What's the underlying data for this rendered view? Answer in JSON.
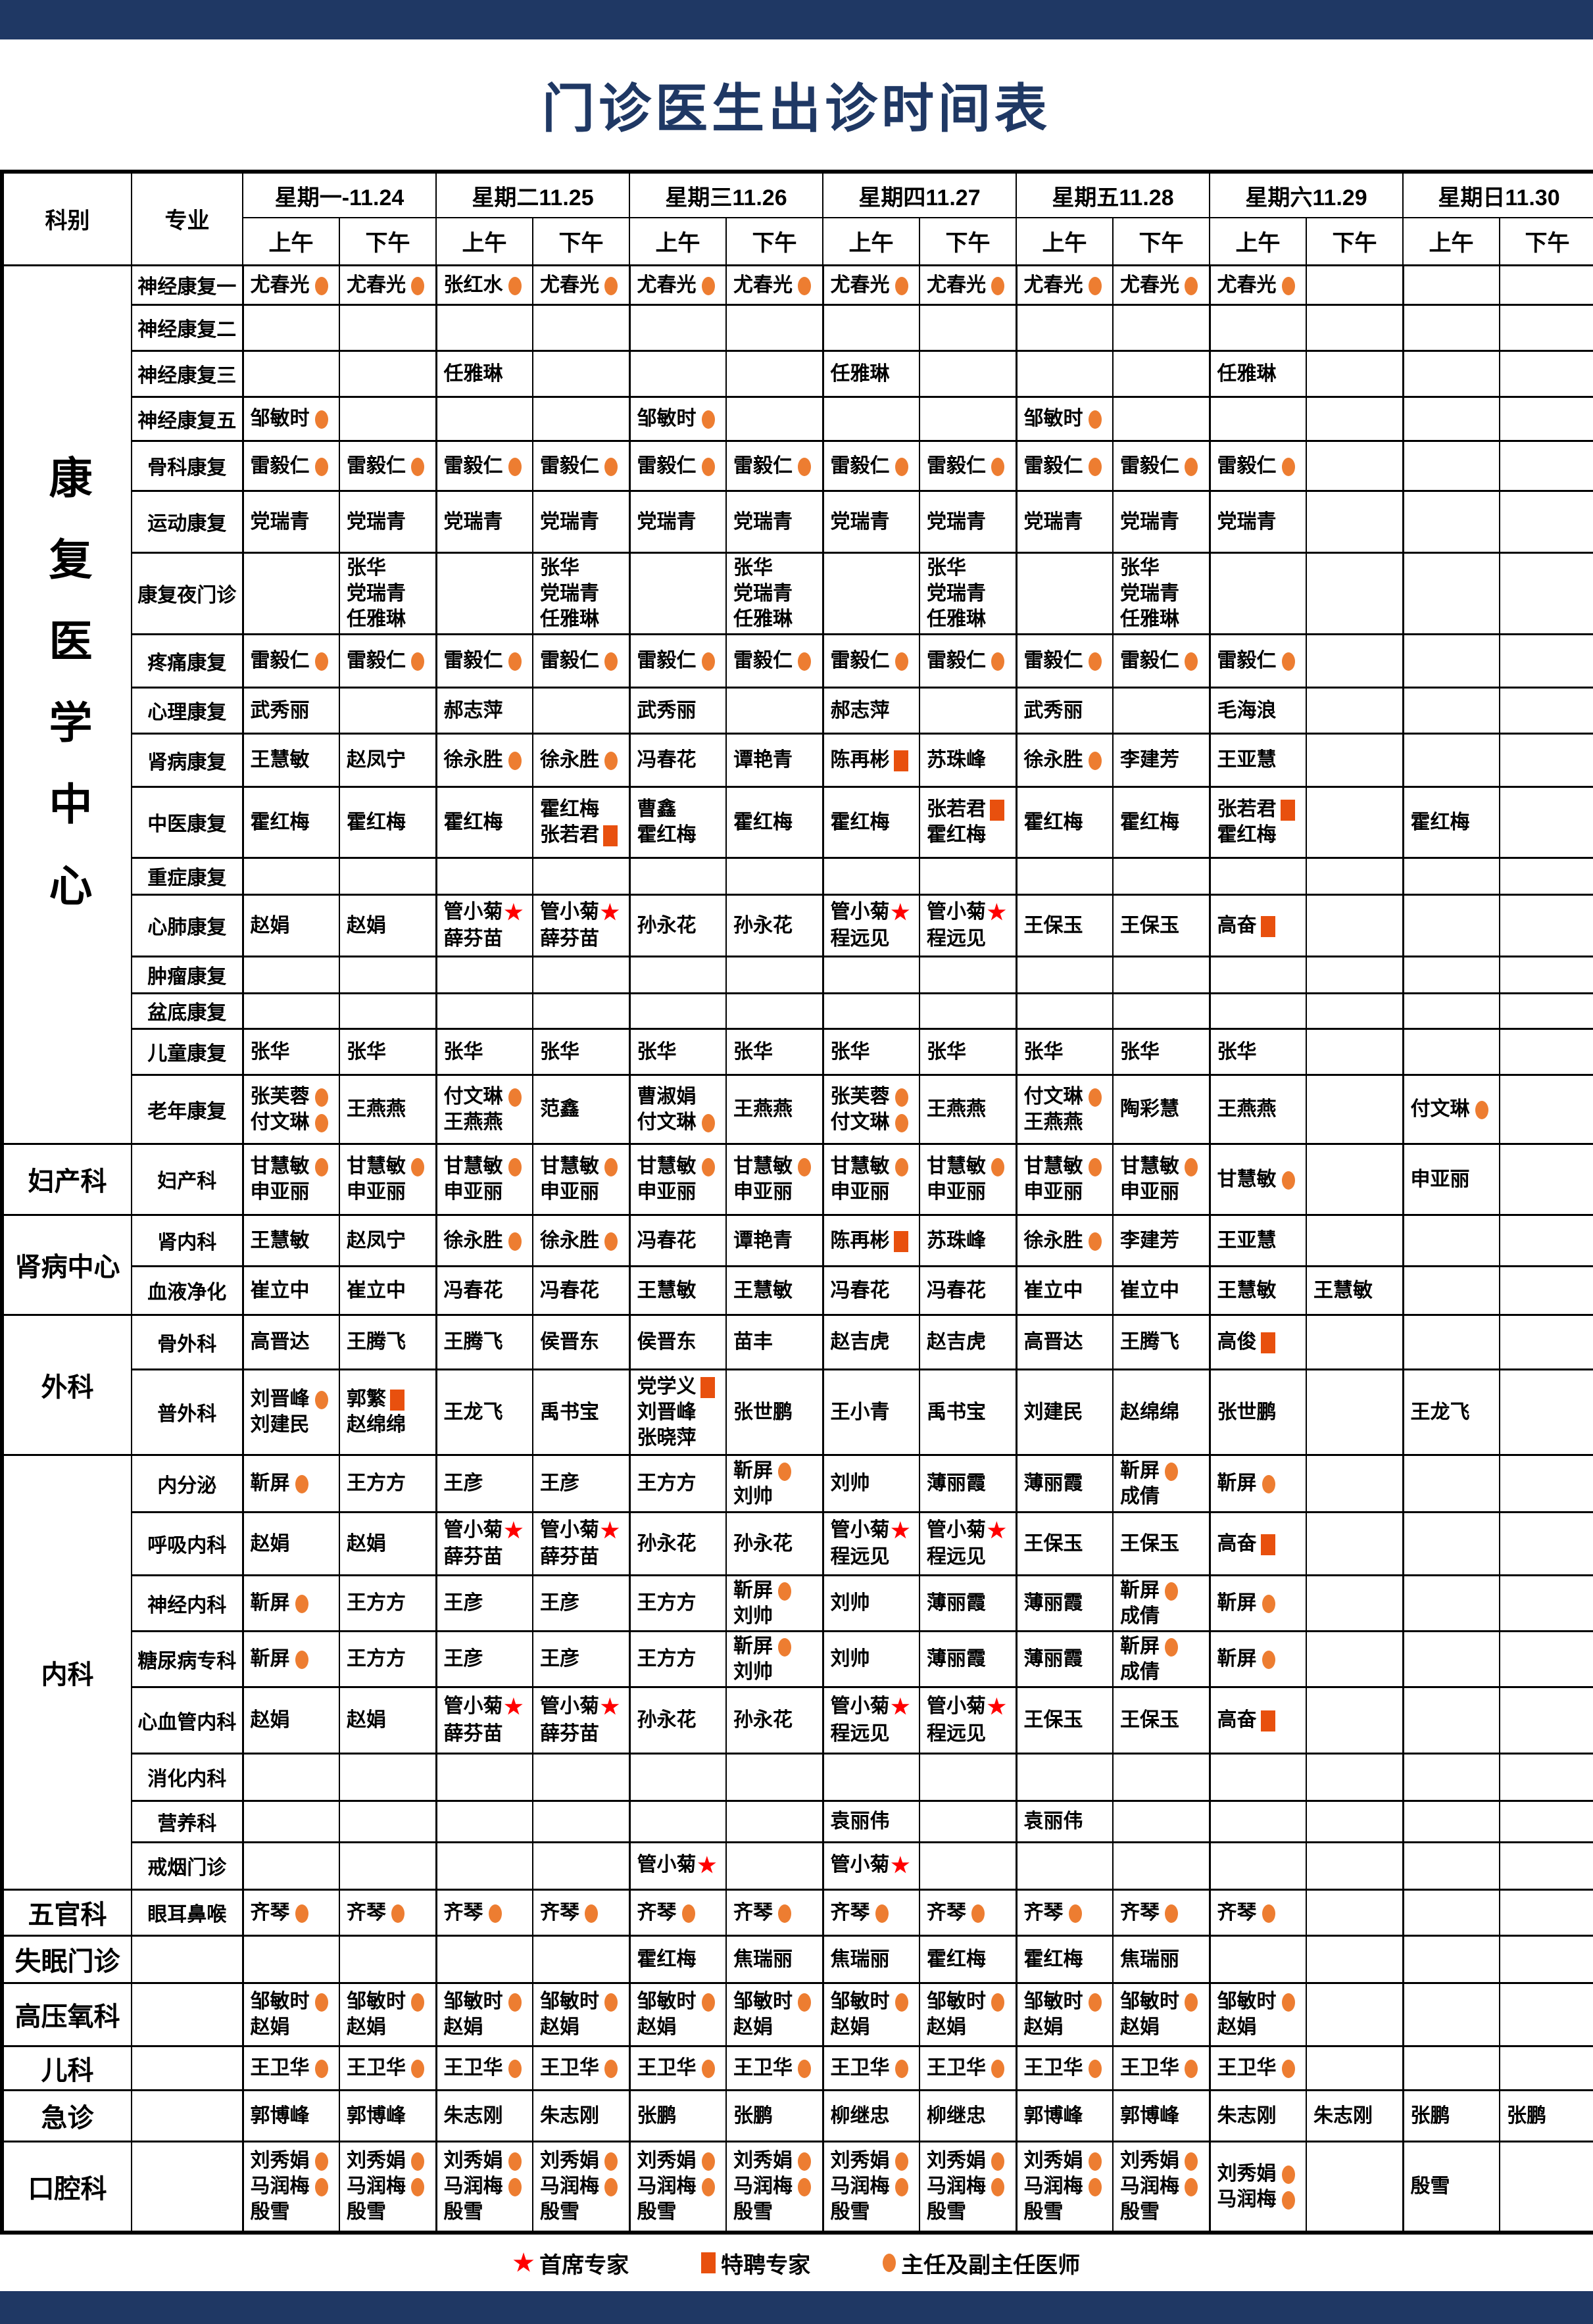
{
  "title": "门诊医生出诊时间表",
  "colors": {
    "navy": "#1F3864",
    "dot": "#ED7D31",
    "square": "#E8500E",
    "star": "#FF0000"
  },
  "header": {
    "col1": "科别",
    "col2": "专业",
    "days": [
      "星期一-11.24",
      "星期二11.25",
      "星期三11.26",
      "星期四11.27",
      "星期五11.28",
      "星期六11.29",
      "星期日11.30"
    ],
    "am": "上午",
    "pm": "下午"
  },
  "legend": [
    {
      "symbol": "star",
      "label": "首席专家"
    },
    {
      "symbol": "square",
      "label": "特聘专家"
    },
    {
      "symbol": "dot",
      "label": "主任及副主任医师"
    }
  ],
  "departments": [
    {
      "label": "康复医学中心",
      "vertical": true,
      "rows": [
        {
          "label": "神经康复一",
          "h": 60,
          "cells": [
            "尤春光●",
            "尤春光●",
            "张红水●",
            "尤春光●",
            "尤春光●",
            "尤春光●",
            "尤春光●",
            "尤春光●",
            "尤春光●",
            "尤春光●",
            "尤春光●",
            "",
            "",
            ""
          ]
        },
        {
          "label": "神经康复二",
          "h": 70,
          "cells": [
            "",
            "",
            "",
            "",
            "",
            "",
            "",
            "",
            "",
            "",
            "",
            "",
            "",
            ""
          ]
        },
        {
          "label": "神经康复三",
          "h": 70,
          "cells": [
            "",
            "",
            "任雅琳",
            "",
            "",
            "",
            "任雅琳",
            "",
            "",
            "",
            "任雅琳",
            "",
            "",
            ""
          ]
        },
        {
          "label": "神经康复五",
          "h": 67,
          "cells": [
            "邹敏时●",
            "",
            "",
            "",
            "邹敏时●",
            "",
            "",
            "",
            "邹敏时●",
            "",
            "",
            "",
            "",
            ""
          ]
        },
        {
          "label": "骨科康复",
          "h": 76,
          "cells": [
            "雷毅仁●",
            "雷毅仁●",
            "雷毅仁●",
            "雷毅仁●",
            "雷毅仁●",
            "雷毅仁●",
            "雷毅仁●",
            "雷毅仁●",
            "雷毅仁●",
            "雷毅仁●",
            "雷毅仁●",
            "",
            "",
            ""
          ]
        },
        {
          "label": "运动康复",
          "h": 94,
          "cells": [
            "党瑞青",
            "党瑞青",
            "党瑞青",
            "党瑞青",
            "党瑞青",
            "党瑞青",
            "党瑞青",
            "党瑞青",
            "党瑞青",
            "党瑞青",
            "党瑞青",
            "",
            "",
            ""
          ]
        },
        {
          "label": "康复夜门诊",
          "h": 123,
          "cells": [
            "",
            "张华\n党瑞青\n任雅琳",
            "",
            "张华\n党瑞青\n任雅琳",
            "",
            "张华\n党瑞青\n任雅琳",
            "",
            "张华\n党瑞青\n任雅琳",
            "",
            "张华\n党瑞青\n任雅琳",
            "",
            "",
            "",
            ""
          ]
        },
        {
          "label": "疼痛康复",
          "h": 81,
          "cells": [
            "雷毅仁●",
            "雷毅仁●",
            "雷毅仁●",
            "雷毅仁●",
            "雷毅仁●",
            "雷毅仁●",
            "雷毅仁●",
            "雷毅仁●",
            "雷毅仁●",
            "雷毅仁●",
            "雷毅仁●",
            "",
            "",
            ""
          ]
        },
        {
          "label": "心理康复",
          "h": 70,
          "cells": [
            "武秀丽",
            "",
            "郝志萍",
            "",
            "武秀丽",
            "",
            "郝志萍",
            "",
            "武秀丽",
            "",
            "毛海浪",
            "",
            "",
            ""
          ]
        },
        {
          "label": "肾病康复",
          "h": 81,
          "cells": [
            "王慧敏",
            "赵凤宁",
            "徐永胜●",
            "徐永胜●",
            "冯春花",
            "谭艳青",
            "陈再彬■",
            "苏珠峰",
            "徐永胜●",
            "李建芳",
            "王亚慧",
            "",
            "",
            ""
          ]
        },
        {
          "label": "中医康复",
          "h": 108,
          "cells": [
            "霍红梅",
            "霍红梅",
            "霍红梅",
            "霍红梅\n张若君■",
            "曹鑫\n霍红梅",
            "霍红梅",
            "霍红梅",
            "张若君■\n霍红梅",
            "霍红梅",
            "霍红梅",
            "张若君■\n霍红梅",
            "",
            "霍红梅",
            ""
          ]
        },
        {
          "label": "重症康复",
          "h": 56,
          "cells": [
            "",
            "",
            "",
            "",
            "",
            "",
            "",
            "",
            "",
            "",
            "",
            "",
            "",
            ""
          ]
        },
        {
          "label": "心肺康复",
          "h": 94,
          "cells": [
            "赵娟",
            "赵娟",
            "管小菊★\n薛芬苗",
            "管小菊★\n薛芬苗",
            "孙永花",
            "孙永花",
            "管小菊★\n程远见",
            "管小菊★\n程远见",
            "王保玉",
            "王保玉",
            "高奋■",
            "",
            "",
            ""
          ]
        },
        {
          "label": "肿瘤康复",
          "h": 56,
          "cells": [
            "",
            "",
            "",
            "",
            "",
            "",
            "",
            "",
            "",
            "",
            "",
            "",
            "",
            ""
          ]
        },
        {
          "label": "盆底康复",
          "h": 54,
          "cells": [
            "",
            "",
            "",
            "",
            "",
            "",
            "",
            "",
            "",
            "",
            "",
            "",
            "",
            ""
          ]
        },
        {
          "label": "儿童康复",
          "h": 70,
          "cells": [
            "张华",
            "张华",
            "张华",
            "张华",
            "张华",
            "张华",
            "张华",
            "张华",
            "张华",
            "张华",
            "张华",
            "",
            "",
            ""
          ]
        },
        {
          "label": "老年康复",
          "h": 105,
          "cells": [
            "张芙蓉●\n付文琳●",
            "王燕燕",
            "付文琳●\n王燕燕",
            "范鑫",
            "曹淑娟\n付文琳●",
            "王燕燕",
            "张芙蓉●\n付文琳●",
            "王燕燕",
            "付文琳●\n王燕燕",
            "陶彩慧",
            "王燕燕",
            "",
            "付文琳●",
            ""
          ]
        }
      ]
    },
    {
      "label": "妇产科",
      "rows": [
        {
          "label": "妇产科",
          "h": 108,
          "cells": [
            "甘慧敏●\n申亚丽",
            "甘慧敏●\n申亚丽",
            "甘慧敏●\n申亚丽",
            "甘慧敏●\n申亚丽",
            "甘慧敏●\n申亚丽",
            "甘慧敏●\n申亚丽",
            "甘慧敏●\n申亚丽",
            "甘慧敏●\n申亚丽",
            "甘慧敏●\n申亚丽",
            "甘慧敏●\n申亚丽",
            "甘慧敏●",
            "",
            "申亚丽",
            ""
          ]
        }
      ]
    },
    {
      "label": "肾病中心",
      "rows": [
        {
          "label": "肾内科",
          "h": 78,
          "cells": [
            "王慧敏",
            "赵凤宁",
            "徐永胜●",
            "徐永胜●",
            "冯春花",
            "谭艳青",
            "陈再彬■",
            "苏珠峰",
            "徐永胜●",
            "李建芳",
            "王亚慧",
            "",
            "",
            ""
          ]
        },
        {
          "label": "血液净化",
          "h": 74,
          "cells": [
            "崔立中",
            "崔立中",
            "冯春花",
            "冯春花",
            "王慧敏",
            "王慧敏",
            "冯春花",
            "冯春花",
            "崔立中",
            "崔立中",
            "王慧敏",
            "王慧敏",
            "",
            ""
          ]
        }
      ]
    },
    {
      "label": "外科",
      "rows": [
        {
          "label": "骨外科",
          "h": 83,
          "cells": [
            "高晋达",
            "王腾飞",
            "王腾飞",
            "侯晋东",
            "侯晋东",
            "苗丰",
            "赵吉虎",
            "赵吉虎",
            "高晋达",
            "王腾飞",
            "高俊■",
            "",
            "",
            ""
          ]
        },
        {
          "label": "普外科",
          "h": 130,
          "cells": [
            "刘晋峰●\n刘建民",
            "郭繁■\n赵绵绵",
            "王龙飞",
            "禹书宝",
            "党学义■\n刘晋峰\n张晓萍",
            "张世鹏",
            "王小青",
            "禹书宝",
            "刘建民",
            "赵绵绵",
            "张世鹏",
            "",
            "王龙飞",
            ""
          ]
        }
      ]
    },
    {
      "label": "内科",
      "rows": [
        {
          "label": "内分泌",
          "h": 87,
          "cells": [
            "靳屏●",
            "王方方",
            "王彦",
            "王彦",
            "王方方",
            "靳屏●\n刘帅",
            "刘帅",
            "薄丽霞",
            "薄丽霞",
            "靳屏●\n成倩",
            "靳屏●",
            "",
            "",
            ""
          ]
        },
        {
          "label": "呼吸内科",
          "h": 96,
          "cells": [
            "赵娟",
            "赵娟",
            "管小菊★\n薛芬苗",
            "管小菊★\n薛芬苗",
            "孙永花",
            "孙永花",
            "管小菊★\n程远见",
            "管小菊★\n程远见",
            "王保玉",
            "王保玉",
            "高奋■",
            "",
            "",
            ""
          ]
        },
        {
          "label": "神经内科",
          "h": 78,
          "cells": [
            "靳屏●",
            "王方方",
            "王彦",
            "王彦",
            "王方方",
            "靳屏●\n刘帅",
            "刘帅",
            "薄丽霞",
            "薄丽霞",
            "靳屏●\n成倩",
            "靳屏●",
            "",
            "",
            ""
          ]
        },
        {
          "label": "糖尿病专科",
          "h": 78,
          "cells": [
            "靳屏●",
            "王方方",
            "王彦",
            "王彦",
            "王方方",
            "靳屏●\n刘帅",
            "刘帅",
            "薄丽霞",
            "薄丽霞",
            "靳屏●\n成倩",
            "靳屏●",
            "",
            "",
            ""
          ]
        },
        {
          "label": "心血管内科",
          "h": 101,
          "cells": [
            "赵娟",
            "赵娟",
            "管小菊★\n薛芬苗",
            "管小菊★\n薛芬苗",
            "孙永花",
            "孙永花",
            "管小菊★\n程远见",
            "管小菊★\n程远见",
            "王保玉",
            "王保玉",
            "高奋■",
            "",
            "",
            ""
          ]
        },
        {
          "label": "消化内科",
          "h": 72,
          "cells": [
            "",
            "",
            "",
            "",
            "",
            "",
            "",
            "",
            "",
            "",
            "",
            "",
            "",
            ""
          ]
        },
        {
          "label": "营养科",
          "h": 63,
          "cells": [
            "",
            "",
            "",
            "",
            "",
            "",
            "袁丽伟",
            "",
            "袁丽伟",
            "",
            "",
            "",
            "",
            ""
          ]
        },
        {
          "label": "戒烟门诊",
          "h": 72,
          "cells": [
            "",
            "",
            "",
            "",
            "管小菊★",
            "",
            "管小菊★",
            "",
            "",
            "",
            "",
            "",
            "",
            ""
          ]
        }
      ]
    },
    {
      "label": "五官科",
      "rows": [
        {
          "label": "眼耳鼻喉",
          "h": 70,
          "cells": [
            "齐琴●",
            "齐琴●",
            "齐琴●",
            "齐琴●",
            "齐琴●",
            "齐琴●",
            "齐琴●",
            "齐琴●",
            "齐琴●",
            "齐琴●",
            "齐琴●",
            "",
            "",
            ""
          ]
        }
      ]
    },
    {
      "label": "失眠门诊",
      "rows": [
        {
          "label": "",
          "h": 72,
          "cells": [
            "",
            "",
            "",
            "",
            "霍红梅",
            "焦瑞丽",
            "焦瑞丽",
            "霍红梅",
            "霍红梅",
            "焦瑞丽",
            "",
            "",
            "",
            ""
          ]
        }
      ]
    },
    {
      "label": "高压氧科",
      "rows": [
        {
          "label": "",
          "h": 96,
          "cells": [
            "邹敏时●\n赵娟",
            "邹敏时●\n赵娟",
            "邹敏时●\n赵娟",
            "邹敏时●\n赵娟",
            "邹敏时●\n赵娟",
            "邹敏时●\n赵娟",
            "邹敏时●\n赵娟",
            "邹敏时●\n赵娟",
            "邹敏时●\n赵娟",
            "邹敏时●\n赵娟",
            "邹敏时●\n赵娟",
            "",
            "",
            ""
          ]
        }
      ]
    },
    {
      "label": "儿科",
      "rows": [
        {
          "label": "",
          "h": 67,
          "cells": [
            "王卫华●",
            "王卫华●",
            "王卫华●",
            "王卫华●",
            "王卫华●",
            "王卫华●",
            "王卫华●",
            "王卫华●",
            "王卫华●",
            "王卫华●",
            "王卫华●",
            "",
            "",
            ""
          ]
        }
      ]
    },
    {
      "label": "急诊",
      "rows": [
        {
          "label": "",
          "h": 78,
          "cells": [
            "郭博峰",
            "郭博峰",
            "朱志刚",
            "朱志刚",
            "张鹏",
            "张鹏",
            "柳继忠",
            "柳继忠",
            "郭博峰",
            "郭博峰",
            "朱志刚",
            "朱志刚",
            "张鹏",
            "张鹏"
          ]
        }
      ]
    },
    {
      "label": "口腔科",
      "rows": [
        {
          "label": "",
          "h": 139,
          "cells": [
            "刘秀娟●\n马润梅●\n殷雪",
            "刘秀娟●\n马润梅●\n殷雪",
            "刘秀娟●\n马润梅●\n殷雪",
            "刘秀娟●\n马润梅●\n殷雪",
            "刘秀娟●\n马润梅●\n殷雪",
            "刘秀娟●\n马润梅●\n殷雪",
            "刘秀娟●\n马润梅●\n殷雪",
            "刘秀娟●\n马润梅●\n殷雪",
            "刘秀娟●\n马润梅●\n殷雪",
            "刘秀娟●\n马润梅●\n殷雪",
            "刘秀娟●\n马润梅●",
            "",
            "殷雪",
            ""
          ]
        }
      ]
    }
  ]
}
